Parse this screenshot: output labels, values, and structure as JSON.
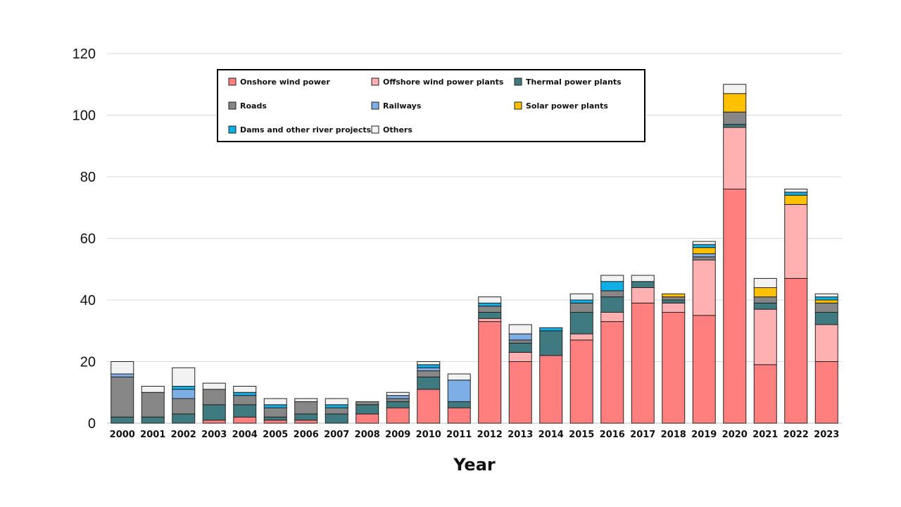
{
  "chart_data": {
    "type": "bar",
    "stacked": true,
    "title": "",
    "xlabel": "Year",
    "ylabel": "",
    "ylim": [
      0,
      120
    ],
    "yticks": [
      0,
      20,
      40,
      60,
      80,
      100,
      120
    ],
    "grid": true,
    "legend_position": "top-left",
    "categories": [
      "2000",
      "2001",
      "2002",
      "2003",
      "2004",
      "2005",
      "2006",
      "2007",
      "2008",
      "2009",
      "2010",
      "2011",
      "2012",
      "2013",
      "2014",
      "2015",
      "2016",
      "2017",
      "2018",
      "2019",
      "2020",
      "2021",
      "2022",
      "2023"
    ],
    "series": [
      {
        "name": "Onshore wind power",
        "color": "#ff7f7f",
        "values": [
          0,
          0,
          0,
          1,
          2,
          1,
          1,
          0,
          3,
          5,
          11,
          5,
          33,
          20,
          22,
          27,
          33,
          39,
          36,
          35,
          76,
          19,
          47,
          20
        ]
      },
      {
        "name": "Offshore wind power plants",
        "color": "#ffb0b0",
        "values": [
          0,
          0,
          0,
          0,
          0,
          0,
          0,
          0,
          0,
          0,
          0,
          0,
          1,
          3,
          0,
          2,
          3,
          5,
          3,
          18,
          20,
          18,
          24,
          12
        ]
      },
      {
        "name": "Thermal power plants",
        "color": "#3f7a80",
        "values": [
          2,
          2,
          3,
          5,
          4,
          1,
          2,
          3,
          3,
          2,
          4,
          2,
          2,
          3,
          8,
          7,
          5,
          2,
          1,
          0,
          1,
          2,
          0,
          4
        ]
      },
      {
        "name": "Roads",
        "color": "#878787",
        "values": [
          13,
          8,
          5,
          5,
          3,
          3,
          4,
          2,
          1,
          1,
          2,
          0,
          2,
          1,
          0,
          3,
          2,
          0,
          1,
          1,
          4,
          2,
          0,
          3
        ]
      },
      {
        "name": "Railways",
        "color": "#7eaee6",
        "values": [
          1,
          0,
          3,
          0,
          0,
          0,
          0,
          0,
          0,
          1,
          1,
          7,
          0,
          2,
          0,
          0,
          0,
          0,
          0,
          1,
          0,
          0,
          0,
          0
        ]
      },
      {
        "name": "Solar power plants",
        "color": "#ffc000",
        "values": [
          0,
          0,
          0,
          0,
          0,
          0,
          0,
          0,
          0,
          0,
          0,
          0,
          0,
          0,
          0,
          0,
          0,
          0,
          1,
          2,
          6,
          3,
          3,
          1
        ]
      },
      {
        "name": "Dams and other river projects",
        "color": "#0fb0e8",
        "values": [
          0,
          0,
          1,
          0,
          1,
          1,
          0,
          1,
          0,
          0,
          1,
          0,
          1,
          0,
          1,
          1,
          3,
          0,
          0,
          1,
          0,
          0,
          1,
          1
        ]
      },
      {
        "name": "Others",
        "color": "#f2f2f2",
        "values": [
          4,
          2,
          6,
          2,
          2,
          2,
          1,
          2,
          0,
          1,
          1,
          2,
          2,
          3,
          0,
          2,
          2,
          2,
          0,
          1,
          3,
          3,
          1,
          1
        ]
      }
    ]
  }
}
